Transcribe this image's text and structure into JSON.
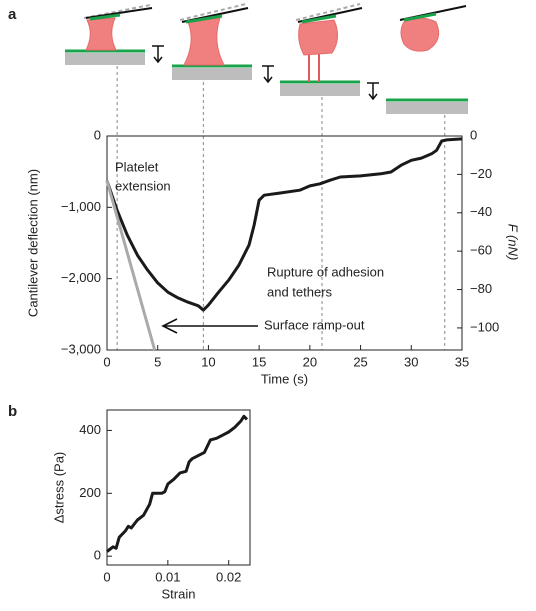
{
  "chart_data": [
    {
      "type": "line",
      "panel_label": "a",
      "xlabel": "Time (s)",
      "ylabel": "Cantilever deflection (nm)",
      "y2label": "F (nN)",
      "xlim": [
        0,
        35
      ],
      "xticks": [
        0,
        5,
        10,
        15,
        20,
        25,
        30,
        35
      ],
      "ylim": [
        -3000,
        0
      ],
      "yticks": [
        0,
        {
          "value": -1000,
          "label": "−1,000"
        },
        {
          "value": -2000,
          "label": "−2,000"
        },
        {
          "value": -3000,
          "label": "−3,000"
        }
      ],
      "y2lim": [
        -111.5,
        0
      ],
      "y2ticks": [
        0,
        {
          "value": -20,
          "label": "−20"
        },
        {
          "value": -40,
          "label": "−40"
        },
        {
          "value": -60,
          "label": "−60"
        },
        {
          "value": -80,
          "label": "−80"
        },
        {
          "value": -100,
          "label": "−100"
        }
      ],
      "guide_lines_x": [
        1,
        9.5,
        21.2,
        33.3
      ],
      "annotations": [
        "Platelet",
        "extension",
        "Rupture of adhesion",
        "and tethers",
        "Surface ramp-out"
      ],
      "series": [
        {
          "color": "#1a1a1a",
          "width": 3,
          "x": [
            0,
            1,
            2,
            3,
            4,
            5,
            6,
            7,
            8,
            9,
            9.5,
            10,
            11,
            12,
            13,
            14,
            14.5,
            15,
            15.5,
            17,
            19,
            20,
            21,
            22,
            23,
            25,
            27,
            28,
            29,
            30,
            31,
            32,
            32.5,
            33,
            33.5,
            35
          ],
          "values": [
            -630,
            -1040,
            -1390,
            -1670,
            -1880,
            -2060,
            -2190,
            -2270,
            -2330,
            -2380,
            -2440,
            -2370,
            -2190,
            -2020,
            -1810,
            -1530,
            -1250,
            -900,
            -830,
            -800,
            -760,
            -700,
            -670,
            -620,
            -575,
            -560,
            -530,
            -505,
            -410,
            -340,
            -310,
            -250,
            -200,
            -70,
            -55,
            -40
          ]
        },
        {
          "color": "#aaaaaa",
          "width": 3,
          "x": [
            0,
            4.7
          ],
          "values": [
            -630,
            -3000
          ]
        }
      ]
    },
    {
      "type": "line",
      "panel_label": "b",
      "xlabel": "Strain",
      "ylabel": "Δstress (Pa)",
      "xlim": [
        0,
        0.0235
      ],
      "xticks": [
        0,
        0.01,
        0.02
      ],
      "ylim": [
        -28,
        465
      ],
      "yticks": [
        0,
        200,
        400
      ],
      "series": [
        {
          "color": "#1a1a1a",
          "width": 3,
          "x": [
            0,
            0.001,
            0.0015,
            0.002,
            0.003,
            0.0035,
            0.004,
            0.005,
            0.006,
            0.007,
            0.0075,
            0.009,
            0.0095,
            0.01,
            0.011,
            0.012,
            0.013,
            0.0135,
            0.014,
            0.015,
            0.016,
            0.017,
            0.018,
            0.019,
            0.02,
            0.021,
            0.022,
            0.0225,
            0.023
          ],
          "values": [
            15,
            30,
            25,
            60,
            80,
            95,
            90,
            115,
            130,
            165,
            200,
            200,
            205,
            230,
            245,
            265,
            270,
            300,
            310,
            320,
            330,
            370,
            375,
            385,
            395,
            410,
            430,
            445,
            435
          ]
        }
      ]
    }
  ]
}
